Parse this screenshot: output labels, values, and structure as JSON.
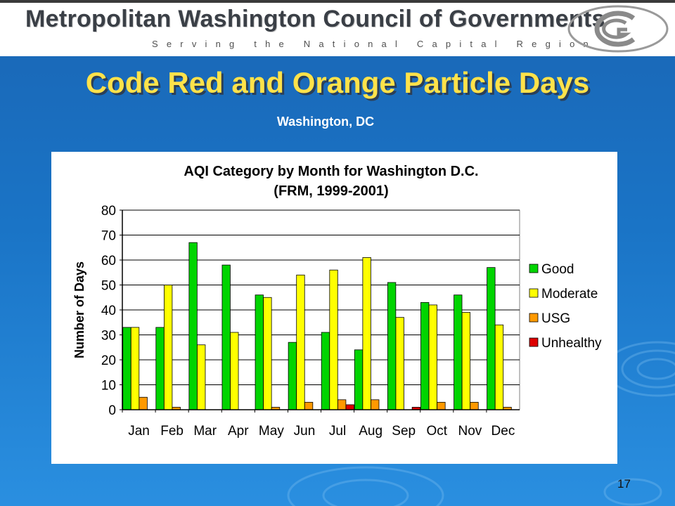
{
  "header": {
    "org_name": "Metropolitan Washington Council of Governments",
    "tagline": "Serving the National Capital Region"
  },
  "slide": {
    "title": "Code Red and Orange Particle Days",
    "subtitle": "Washington, DC",
    "page_number": "17"
  },
  "colors": {
    "background": "#1a74c6",
    "title": "#ffe24a",
    "good": "#00d400",
    "moderate": "#ffff00",
    "usg": "#ff9900",
    "unhealthy": "#dd0000"
  },
  "chart_data": {
    "type": "bar",
    "title": "AQI Category by Month for Washington D.C.",
    "subtitle": "(FRM, 1999-2001)",
    "ylabel": "Number of Days",
    "ylim": [
      0,
      80
    ],
    "yticks": [
      0,
      10,
      20,
      30,
      40,
      50,
      60,
      70,
      80
    ],
    "grid": true,
    "legend_position": "right",
    "categories": [
      "Jan",
      "Feb",
      "Mar",
      "Apr",
      "May",
      "Jun",
      "Jul",
      "Aug",
      "Sep",
      "Oct",
      "Nov",
      "Dec"
    ],
    "series": [
      {
        "name": "Good",
        "color": "#00d400",
        "values": [
          33,
          33,
          67,
          58,
          46,
          27,
          31,
          24,
          51,
          43,
          46,
          57
        ]
      },
      {
        "name": "Moderate",
        "color": "#ffff00",
        "values": [
          33,
          50,
          26,
          31,
          45,
          54,
          56,
          61,
          37,
          42,
          39,
          34
        ]
      },
      {
        "name": "USG",
        "color": "#ff9900",
        "values": [
          5,
          1,
          0,
          0,
          1,
          3,
          4,
          4,
          0,
          3,
          3,
          1
        ]
      },
      {
        "name": "Unhealthy",
        "color": "#dd0000",
        "values": [
          0,
          0,
          0,
          0,
          0,
          0,
          2,
          0,
          1,
          0,
          0,
          0
        ]
      }
    ]
  }
}
